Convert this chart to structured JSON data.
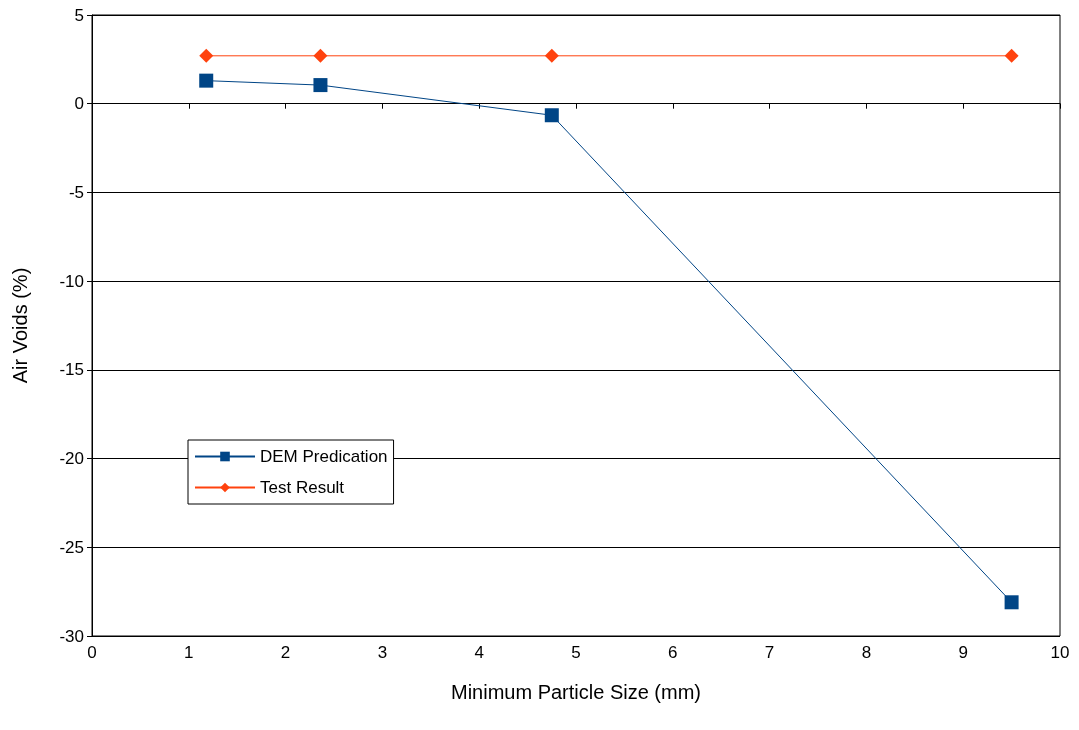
{
  "chart_data": {
    "type": "line",
    "xlabel": "Minimum Particle Size (mm)",
    "ylabel": "Air Voids (%)",
    "xlim": [
      0,
      10
    ],
    "xticks": [
      0,
      1,
      2,
      3,
      4,
      5,
      6,
      7,
      8,
      9,
      10
    ],
    "ylim": [
      -30,
      5
    ],
    "yticks": [
      -30,
      -25,
      -20,
      -15,
      -10,
      -5,
      0,
      5
    ],
    "grid": "y",
    "legend": "bottom left",
    "series": [
      {
        "name": "DEM Predication",
        "color": "#004586",
        "marker": "square",
        "x": [
          1.18,
          2.36,
          4.75,
          9.5
        ],
        "values": [
          1.3,
          1.05,
          -0.65,
          -28.1
        ]
      },
      {
        "name": "Test Result",
        "color": "#ff420e",
        "marker": "diamond",
        "x": [
          1.18,
          2.36,
          4.75,
          9.5
        ],
        "values": [
          2.7,
          2.7,
          2.7,
          2.7
        ]
      }
    ]
  }
}
